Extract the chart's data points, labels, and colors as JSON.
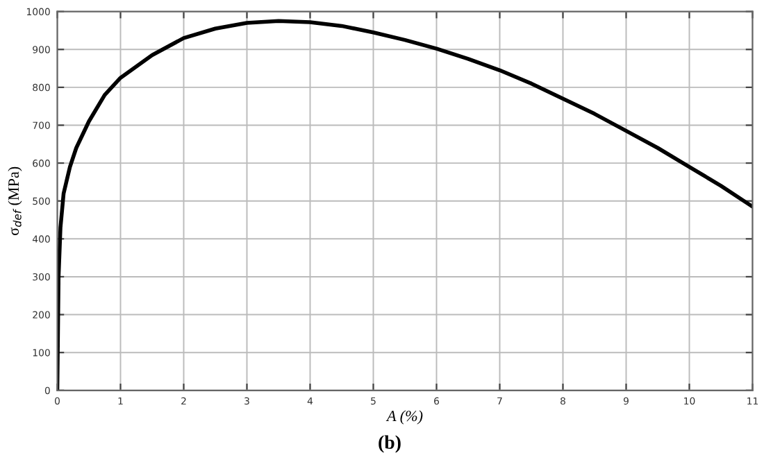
{
  "chart_data": {
    "type": "line",
    "xlabel": "A (%)",
    "ylabel": "σ$_{def}$ (MPa)",
    "annotations": [
      "(b)"
    ],
    "x": [
      0,
      0.02,
      0.05,
      0.1,
      0.2,
      0.3,
      0.5,
      0.75,
      1,
      1.5,
      2,
      2.5,
      3,
      3.5,
      4,
      4.5,
      5,
      5.5,
      6,
      6.5,
      7,
      7.5,
      8,
      8.5,
      9,
      9.5,
      10,
      10.5,
      11
    ],
    "series": [
      {
        "color": "#000000",
        "values": [
          0,
          300,
          430,
          520,
          590,
          640,
          710,
          780,
          825,
          885,
          930,
          955,
          970,
          975,
          972,
          962,
          945,
          925,
          902,
          875,
          845,
          810,
          770,
          730,
          685,
          640,
          590,
          540,
          485
        ]
      }
    ],
    "xlim": [
      0,
      11
    ],
    "xticks": [
      0,
      1,
      2,
      3,
      4,
      5,
      6,
      7,
      8,
      9,
      10,
      11
    ],
    "ylim": [
      0,
      1000
    ],
    "yticks": [
      0,
      100,
      200,
      300,
      400,
      500,
      600,
      700,
      800,
      900,
      1000
    ],
    "grid": true,
    "legend": false,
    "marker": "none",
    "line_style": "solid"
  }
}
